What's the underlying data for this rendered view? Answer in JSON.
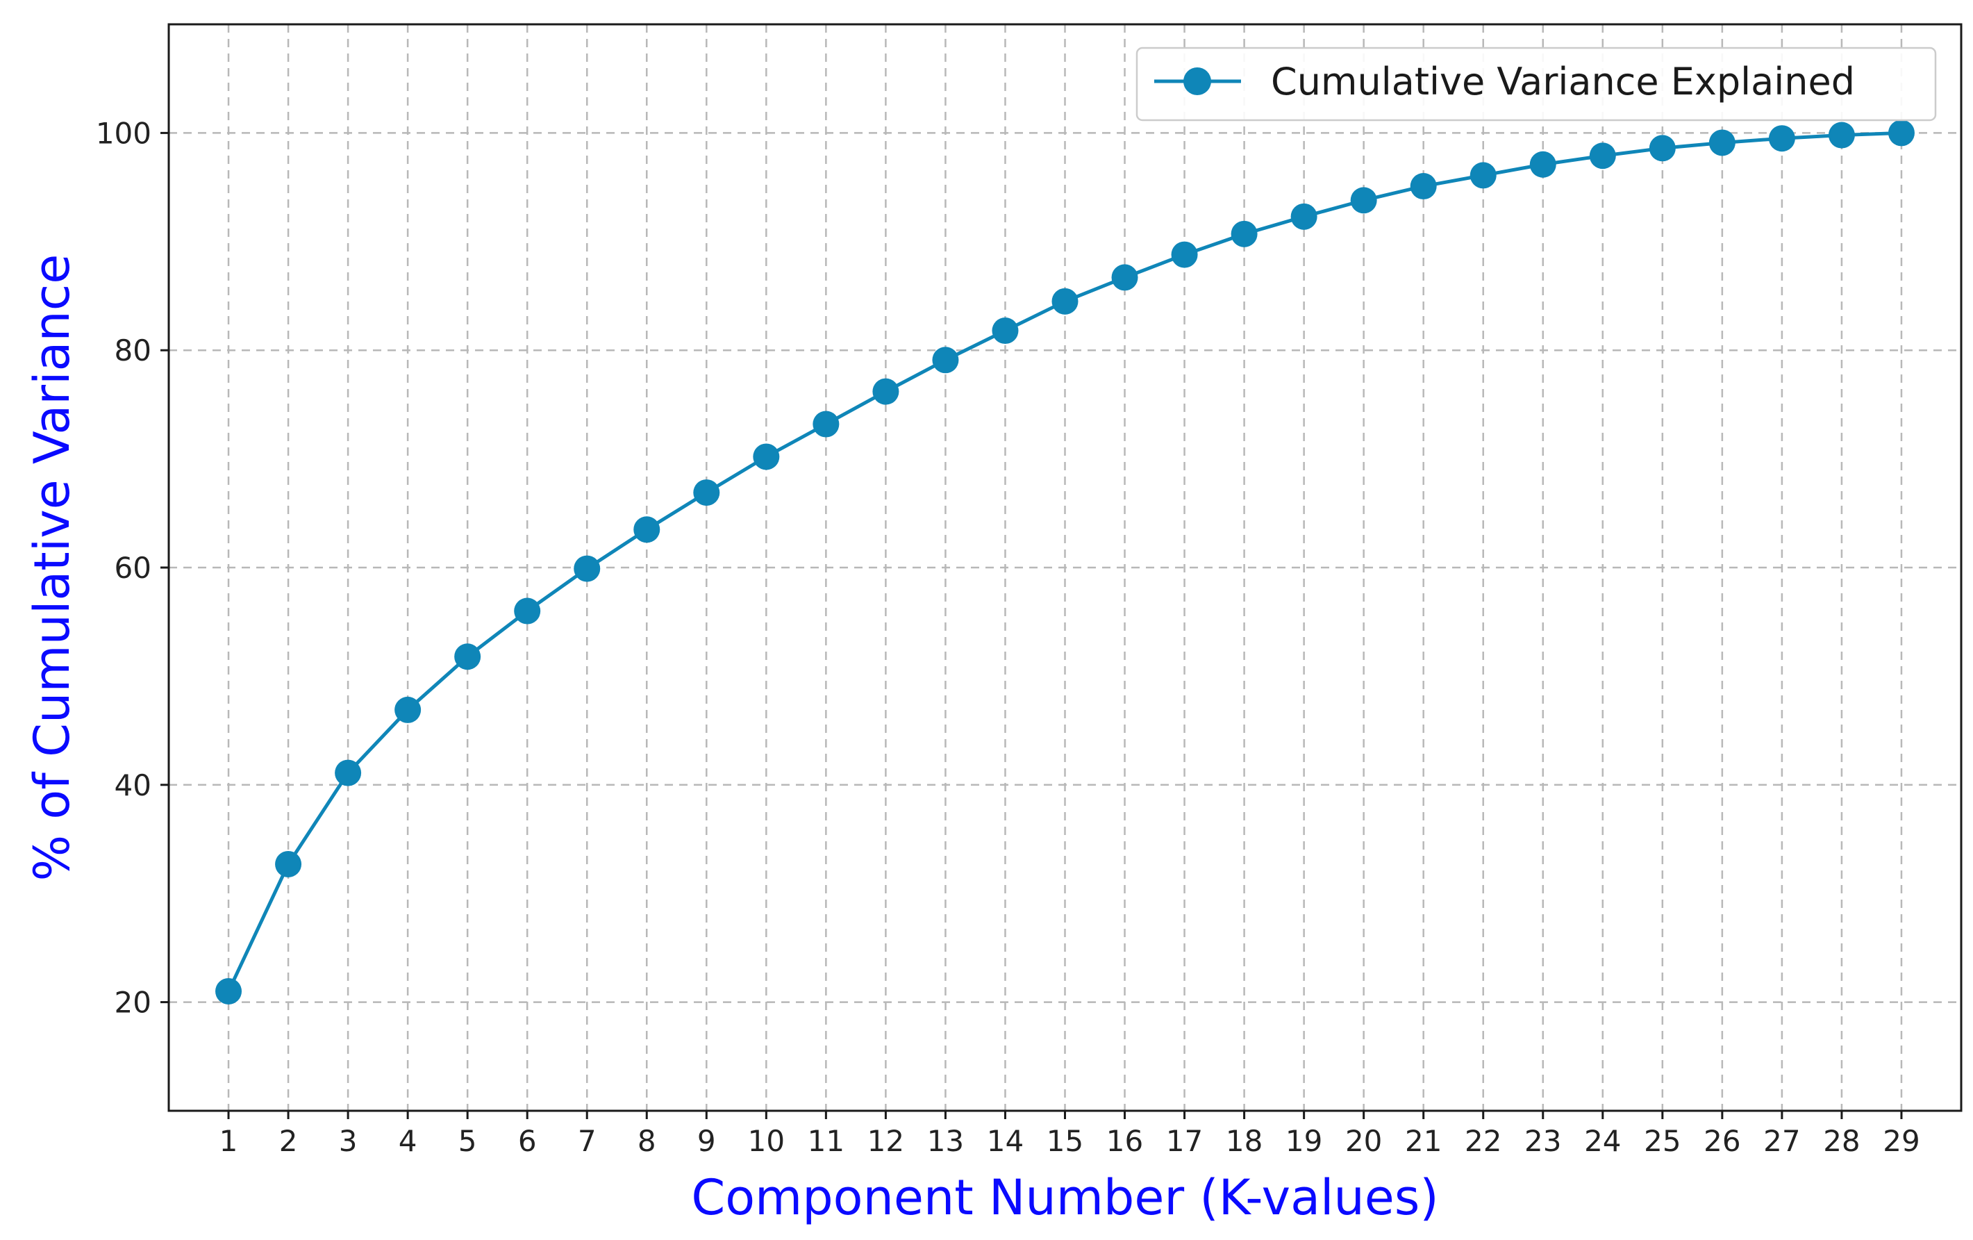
{
  "chart_data": {
    "type": "line",
    "xlabel": "Component Number (K-values)",
    "ylabel": "% of Cumulative Variance",
    "x": [
      1,
      2,
      3,
      4,
      5,
      6,
      7,
      8,
      9,
      10,
      11,
      12,
      13,
      14,
      15,
      16,
      17,
      18,
      19,
      20,
      21,
      22,
      23,
      24,
      25,
      26,
      27,
      28,
      29
    ],
    "series": [
      {
        "name": "Cumulative Variance Explained",
        "color": "#0f86b8",
        "marker": "circle",
        "values": [
          21.0,
          32.7,
          41.1,
          46.9,
          51.8,
          56.0,
          59.9,
          63.5,
          66.9,
          70.2,
          73.2,
          76.2,
          79.1,
          81.8,
          84.5,
          86.7,
          88.8,
          90.7,
          92.3,
          93.8,
          95.1,
          96.1,
          97.1,
          97.9,
          98.6,
          99.1,
          99.5,
          99.8,
          100.0
        ]
      }
    ],
    "xlim": [
      0,
      30
    ],
    "ylim": [
      10,
      110
    ],
    "yticks": [
      20,
      40,
      60,
      80,
      100
    ],
    "grid": true,
    "legend_position": "top-right",
    "title_color": "#0a0aff"
  }
}
